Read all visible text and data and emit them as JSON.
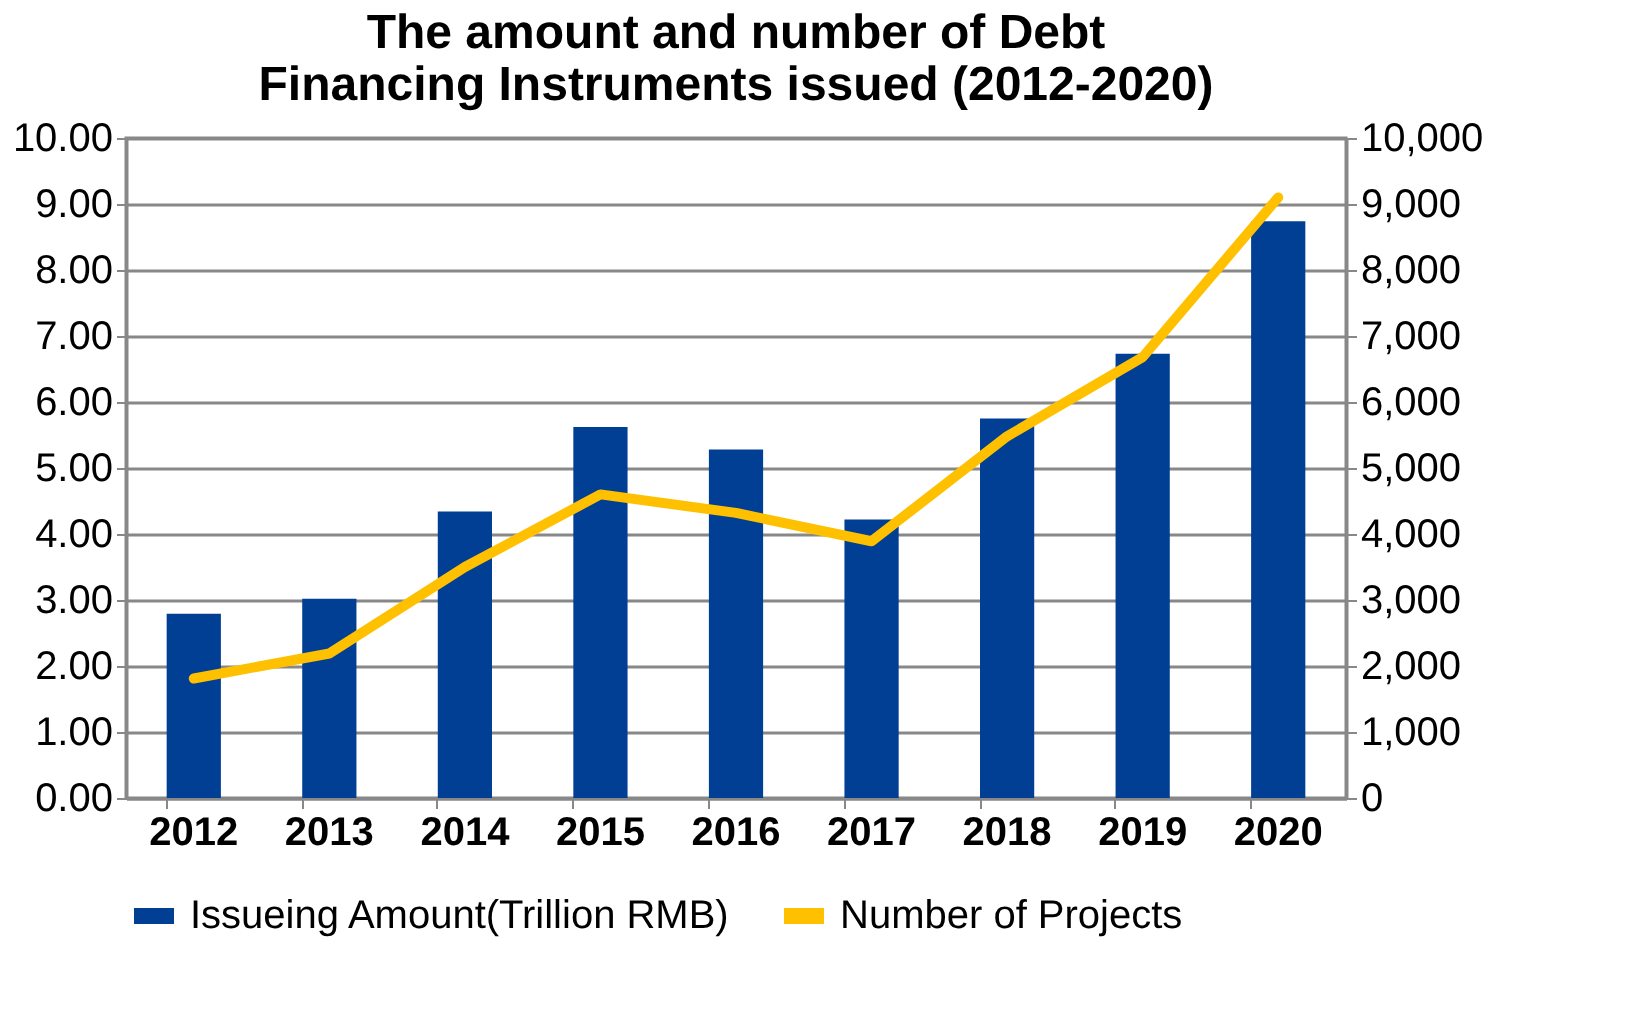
{
  "chart_data": {
    "type": "bar",
    "title": [
      "The amount and number of Debt",
      "Financing Instruments issued (2012-2020)"
    ],
    "categories": [
      "2012",
      "2013",
      "2014",
      "2015",
      "2016",
      "2017",
      "2018",
      "2019",
      "2020"
    ],
    "series": [
      {
        "name": "Issueing Amount(Trillion RMB)",
        "color": "#003f94",
        "values": [
          2.79,
          3.02,
          4.34,
          5.62,
          5.28,
          4.22,
          5.75,
          6.73,
          8.74
        ]
      },
      {
        "name": "Number of Projects",
        "type": "line",
        "axis": "y2",
        "color": "#ffc000",
        "values": [
          1810,
          2190,
          3500,
          4600,
          4320,
          3890,
          5480,
          6680,
          9100
        ]
      }
    ],
    "ylim": [
      0,
      10
    ],
    "yticks": [
      {
        "value": 0,
        "label": "0.00"
      },
      {
        "value": 1,
        "label": "1.00"
      },
      {
        "value": 2,
        "label": "2.00"
      },
      {
        "value": 3,
        "label": "3.00"
      },
      {
        "value": 4,
        "label": "4.00"
      },
      {
        "value": 5,
        "label": "5.00"
      },
      {
        "value": 6,
        "label": "6.00"
      },
      {
        "value": 7,
        "label": "7.00"
      },
      {
        "value": 8,
        "label": "8.00"
      },
      {
        "value": 9,
        "label": "9.00"
      },
      {
        "value": 10,
        "label": "10.00"
      }
    ],
    "y2lim": [
      0,
      10000
    ],
    "y2ticks": [
      0,
      {
        "value": 1000,
        "label": "1,000"
      },
      {
        "value": 2000,
        "label": "2,000"
      },
      {
        "value": 3000,
        "label": "3,000"
      },
      {
        "value": 4000,
        "label": "4,000"
      },
      {
        "value": 5000,
        "label": "5,000"
      },
      {
        "value": 6000,
        "label": "6,000"
      },
      {
        "value": 7000,
        "label": "7,000"
      },
      {
        "value": 8000,
        "label": "8,000"
      },
      {
        "value": 9000,
        "label": "9,000"
      },
      {
        "value": 10000,
        "label": "10,000"
      }
    ],
    "grid": "y",
    "legend": "bottom"
  }
}
